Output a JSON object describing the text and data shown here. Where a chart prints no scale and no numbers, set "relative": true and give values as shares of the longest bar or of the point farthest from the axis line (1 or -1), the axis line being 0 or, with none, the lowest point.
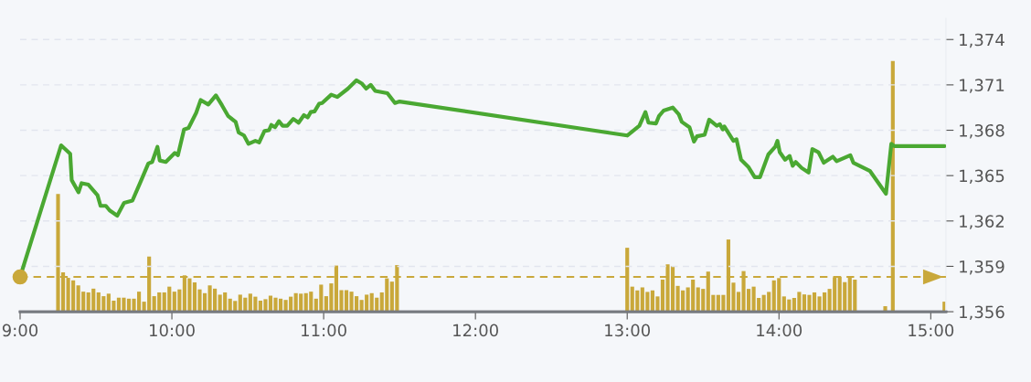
{
  "chart_data": [
    {
      "type": "line",
      "xlim": [
        9,
        15.1
      ],
      "ylim": [
        1356,
        1375.4
      ],
      "xticks": [
        {
          "value": 9,
          "label": "9:00"
        },
        {
          "value": 10,
          "label": "10:00"
        },
        {
          "value": 11,
          "label": "11:00"
        },
        {
          "value": 12,
          "label": "12:00"
        },
        {
          "value": 13,
          "label": "13:00"
        },
        {
          "value": 14,
          "label": "14:00"
        },
        {
          "value": 15,
          "label": "15:00"
        }
      ],
      "yticks": [
        {
          "value": 1356,
          "label": "1,356"
        },
        {
          "value": 1359,
          "label": "1,359"
        },
        {
          "value": 1362,
          "label": "1,362"
        },
        {
          "value": 1365,
          "label": "1,365"
        },
        {
          "value": 1368,
          "label": "1,368"
        },
        {
          "value": 1371,
          "label": "1,371"
        },
        {
          "value": 1374,
          "label": "1,374"
        }
      ],
      "grid": "y",
      "marker": "none",
      "line_style": "solid",
      "ref_lines": [
        {
          "axis": "y",
          "value": 1358.3,
          "color": "#c9a83a",
          "line_style": "dashed"
        }
      ],
      "series": [
        {
          "color": "#4aa832",
          "x": [
            9.0,
            9.27,
            9.33,
            9.34,
            9.385,
            9.405,
            9.45,
            9.51,
            9.53,
            9.565,
            9.59,
            9.64,
            9.685,
            9.74,
            9.79,
            9.845,
            9.87,
            9.905,
            9.92,
            9.96,
            10.02,
            10.04,
            10.08,
            10.11,
            10.135,
            10.16,
            10.19,
            10.24,
            10.29,
            10.33,
            10.37,
            10.42,
            10.44,
            10.475,
            10.505,
            10.55,
            10.575,
            10.61,
            10.64,
            10.655,
            10.68,
            10.705,
            10.73,
            10.76,
            10.8,
            10.835,
            10.87,
            10.895,
            10.915,
            10.94,
            10.97,
            10.99,
            11.05,
            11.09,
            11.16,
            11.215,
            11.25,
            11.28,
            11.31,
            11.34,
            11.42,
            11.47,
            11.5,
            13.0,
            13.08,
            13.12,
            13.14,
            13.19,
            13.21,
            13.24,
            13.3,
            13.34,
            13.36,
            13.41,
            13.44,
            13.46,
            13.51,
            13.54,
            13.59,
            13.61,
            13.63,
            13.64,
            13.7,
            13.72,
            13.75,
            13.8,
            13.84,
            13.875,
            13.93,
            13.975,
            13.99,
            14.005,
            14.04,
            14.07,
            14.09,
            14.11,
            14.15,
            14.195,
            14.22,
            14.26,
            14.295,
            14.355,
            14.38,
            14.47,
            14.49,
            14.6,
            14.705,
            14.74,
            14.76,
            15.09
          ],
          "values": [
            1358.3,
            1367.0,
            1366.45,
            1364.7,
            1363.9,
            1364.5,
            1364.4,
            1363.7,
            1363.0,
            1363.0,
            1362.7,
            1362.35,
            1363.2,
            1363.35,
            1364.5,
            1365.8,
            1365.9,
            1366.9,
            1366.0,
            1365.9,
            1366.5,
            1366.35,
            1368.05,
            1368.15,
            1368.65,
            1369.15,
            1370.0,
            1369.7,
            1370.3,
            1369.65,
            1368.95,
            1368.55,
            1367.85,
            1367.65,
            1367.1,
            1367.3,
            1367.2,
            1367.95,
            1368.0,
            1368.35,
            1368.2,
            1368.6,
            1368.3,
            1368.3,
            1368.75,
            1368.5,
            1369.0,
            1368.85,
            1369.2,
            1369.25,
            1369.75,
            1369.8,
            1370.35,
            1370.2,
            1370.75,
            1371.3,
            1371.1,
            1370.75,
            1371.0,
            1370.6,
            1370.45,
            1369.8,
            1369.9,
            1367.65,
            1368.3,
            1369.2,
            1368.5,
            1368.45,
            1368.95,
            1369.3,
            1369.5,
            1369.05,
            1368.55,
            1368.2,
            1367.25,
            1367.6,
            1367.7,
            1368.7,
            1368.3,
            1368.4,
            1368.05,
            1368.25,
            1367.3,
            1367.4,
            1366.05,
            1365.55,
            1364.9,
            1364.9,
            1366.4,
            1366.9,
            1367.3,
            1366.55,
            1366.05,
            1366.3,
            1365.65,
            1365.9,
            1365.5,
            1365.2,
            1366.75,
            1366.55,
            1365.85,
            1366.25,
            1365.95,
            1366.35,
            1365.85,
            1365.3,
            1363.8,
            1367.1,
            1366.95,
            1366.95
          ]
        }
      ]
    },
    {
      "type": "bar",
      "relative": true,
      "xlim": [
        9,
        15.1
      ],
      "tick_labels": false,
      "series": [
        {
          "color": "#c9a83a",
          "x": [
            9.25,
            9.2833,
            9.3167,
            9.35,
            9.3833,
            9.4167,
            9.45,
            9.4833,
            9.5167,
            9.55,
            9.5833,
            9.6167,
            9.65,
            9.6833,
            9.7167,
            9.75,
            9.7833,
            9.8167,
            9.85,
            9.8833,
            9.9167,
            9.95,
            9.9833,
            10.0167,
            10.05,
            10.0833,
            10.1167,
            10.15,
            10.1833,
            10.2167,
            10.25,
            10.2833,
            10.3167,
            10.35,
            10.3833,
            10.4167,
            10.45,
            10.4833,
            10.5167,
            10.55,
            10.5833,
            10.6167,
            10.65,
            10.6833,
            10.7167,
            10.75,
            10.7833,
            10.8167,
            10.85,
            10.8833,
            10.9167,
            10.95,
            10.9833,
            11.0167,
            11.05,
            11.0833,
            11.1167,
            11.15,
            11.1833,
            11.2167,
            11.25,
            11.2833,
            11.3167,
            11.35,
            11.3833,
            11.4167,
            11.45,
            11.4833,
            13.0,
            13.0333,
            13.0667,
            13.1,
            13.1333,
            13.1667,
            13.2,
            13.2333,
            13.2667,
            13.3,
            13.3333,
            13.3667,
            13.4,
            13.4333,
            13.4667,
            13.5,
            13.5333,
            13.5667,
            13.6,
            13.6333,
            13.6667,
            13.7,
            13.7333,
            13.7667,
            13.8,
            13.8333,
            13.8667,
            13.9,
            13.9333,
            13.9667,
            14.0,
            14.0333,
            14.0667,
            14.1,
            14.1333,
            14.1667,
            14.2,
            14.2333,
            14.2667,
            14.3,
            14.3333,
            14.3667,
            14.4,
            14.4333,
            14.4667,
            14.5,
            14.7,
            14.75,
            15.09
          ],
          "values": [
            0.47,
            0.157,
            0.135,
            0.125,
            0.105,
            0.08,
            0.077,
            0.092,
            0.077,
            0.062,
            0.072,
            0.044,
            0.056,
            0.056,
            0.052,
            0.052,
            0.08,
            0.04,
            0.22,
            0.062,
            0.077,
            0.077,
            0.1,
            0.08,
            0.089,
            0.145,
            0.133,
            0.117,
            0.089,
            0.074,
            0.105,
            0.092,
            0.068,
            0.077,
            0.052,
            0.043,
            0.068,
            0.056,
            0.072,
            0.06,
            0.044,
            0.05,
            0.064,
            0.056,
            0.052,
            0.047,
            0.06,
            0.074,
            0.072,
            0.074,
            0.08,
            0.052,
            0.108,
            0.062,
            0.113,
            0.184,
            0.086,
            0.086,
            0.08,
            0.062,
            0.047,
            0.068,
            0.074,
            0.056,
            0.077,
            0.133,
            0.12,
            0.186,
            0.255,
            0.1,
            0.085,
            0.097,
            0.079,
            0.085,
            0.061,
            0.128,
            0.189,
            0.182,
            0.103,
            0.085,
            0.097,
            0.128,
            0.097,
            0.091,
            0.16,
            0.067,
            0.067,
            0.067,
            0.288,
            0.116,
            0.079,
            0.162,
            0.091,
            0.1,
            0.055,
            0.067,
            0.079,
            0.125,
            0.134,
            0.061,
            0.049,
            0.055,
            0.079,
            0.069,
            0.067,
            0.077,
            0.061,
            0.077,
            0.091,
            0.137,
            0.14,
            0.118,
            0.137,
            0.128,
            0.022,
            1,
            0.04
          ]
        }
      ]
    }
  ]
}
